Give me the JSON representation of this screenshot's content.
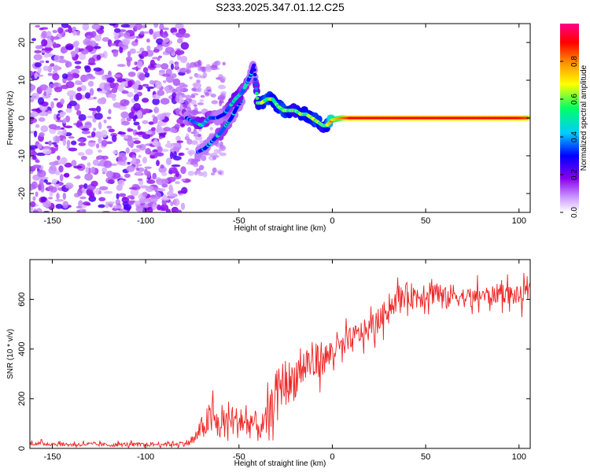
{
  "chart_data": [
    {
      "type": "heatmap",
      "title": "S233.2025.347.01.12.C25",
      "xlabel": "Height of straight line (km)",
      "ylabel": "Frequency (Hz)",
      "xlim": [
        -162,
        106
      ],
      "ylim": [
        -25,
        25
      ],
      "xticks": [
        -150,
        -100,
        -50,
        0,
        50,
        100
      ],
      "yticks": [
        -20,
        -10,
        0,
        10,
        20
      ],
      "noise_region_x": [
        -162,
        -78
      ],
      "signal_track": {
        "x": [
          -78,
          -74,
          -70,
          -66,
          -62,
          -58,
          -55,
          -52,
          -50,
          -48,
          -46,
          -44,
          -42,
          -40,
          -38,
          -35,
          -32,
          -29,
          -26,
          -23,
          -20,
          -17,
          -14,
          -11,
          -8,
          -5,
          -3,
          0,
          5,
          10,
          20,
          30,
          40,
          50,
          60,
          70,
          80,
          90,
          100,
          105
        ],
        "y": [
          0,
          -1,
          -2,
          0,
          0,
          1,
          3,
          5,
          6,
          7,
          9,
          11,
          14,
          4,
          4,
          5,
          5,
          3,
          2,
          2,
          2,
          1,
          1,
          0,
          -1,
          -2,
          -2,
          -0.5,
          0,
          0,
          0,
          0,
          0,
          0,
          0,
          0,
          0,
          0,
          0,
          0
        ],
        "amplitude": [
          0.3,
          0.35,
          0.4,
          0.35,
          0.3,
          0.3,
          0.35,
          0.4,
          0.4,
          0.35,
          0.35,
          0.3,
          0.25,
          0.45,
          0.5,
          0.55,
          0.5,
          0.5,
          0.55,
          0.5,
          0.45,
          0.5,
          0.5,
          0.5,
          0.55,
          0.45,
          0.5,
          0.7,
          0.8,
          0.9,
          0.9,
          0.9,
          0.9,
          0.9,
          0.9,
          0.9,
          0.9,
          0.9,
          0.9,
          0.85
        ]
      },
      "secondary_track": {
        "x": [
          -72,
          -68,
          -64,
          -60,
          -57,
          -54,
          -51,
          -48
        ],
        "y": [
          -9,
          -8,
          -6,
          -4,
          -2,
          0,
          3,
          5
        ],
        "amplitude": [
          0.25,
          0.3,
          0.3,
          0.35,
          0.35,
          0.3,
          0.3,
          0.3
        ]
      },
      "colorbar": {
        "label": "Normalized spectral amplitude",
        "ticks": [
          "0.0",
          "0.2",
          "0.4",
          "0.6",
          "0.8"
        ],
        "range": [
          0,
          1
        ],
        "colors": [
          "#ffffff",
          "#cc99ff",
          "#8800ee",
          "#0000ff",
          "#00ccff",
          "#00ff66",
          "#ffff00",
          "#ff8800",
          "#ff0000",
          "#ff0088"
        ]
      }
    },
    {
      "type": "line",
      "xlabel": "Height of straight line (km)",
      "ylabel": "SNR (10 * v/v)",
      "xlim": [
        -162,
        106
      ],
      "ylim": [
        0,
        760
      ],
      "xticks": [
        -150,
        -100,
        -50,
        0,
        50,
        100
      ],
      "yticks": [
        0,
        200,
        400,
        600
      ],
      "color": "#ee2222",
      "series": [
        {
          "name": "SNR",
          "x": [
            -162,
            -150,
            -140,
            -130,
            -120,
            -110,
            -100,
            -90,
            -80,
            -75,
            -72,
            -70,
            -67,
            -64,
            -61,
            -58,
            -55,
            -52,
            -49,
            -46,
            -43,
            -40,
            -37,
            -34,
            -31,
            -28,
            -25,
            -22,
            -19,
            -16,
            -13,
            -10,
            -7,
            -4,
            -1,
            2,
            5,
            8,
            11,
            14,
            17,
            20,
            23,
            26,
            29,
            32,
            35,
            40,
            45,
            50,
            55,
            60,
            65,
            70,
            75,
            80,
            85,
            90,
            95,
            100,
            106
          ],
          "values": [
            20,
            18,
            15,
            17,
            14,
            16,
            15,
            18,
            20,
            25,
            60,
            80,
            110,
            120,
            90,
            100,
            130,
            100,
            120,
            90,
            110,
            80,
            90,
            120,
            220,
            250,
            280,
            260,
            300,
            320,
            350,
            330,
            370,
            360,
            380,
            410,
            400,
            420,
            440,
            460,
            470,
            480,
            500,
            520,
            560,
            580,
            600,
            620,
            610,
            630,
            640,
            600,
            620,
            610,
            600,
            620,
            610,
            630,
            620,
            610,
            630
          ],
          "noise_amplitude": [
            10,
            10,
            10,
            10,
            10,
            10,
            10,
            12,
            15,
            20,
            40,
            60,
            80,
            90,
            80,
            80,
            90,
            80,
            90,
            80,
            80,
            70,
            70,
            90,
            100,
            110,
            110,
            110,
            110,
            100,
            100,
            100,
            90,
            80,
            80,
            80,
            70,
            70,
            70,
            60,
            60,
            60,
            60,
            60,
            60,
            55,
            60,
            60,
            70,
            70,
            80,
            60,
            60,
            50,
            50,
            50,
            50,
            50,
            50,
            50,
            50
          ]
        }
      ]
    }
  ]
}
